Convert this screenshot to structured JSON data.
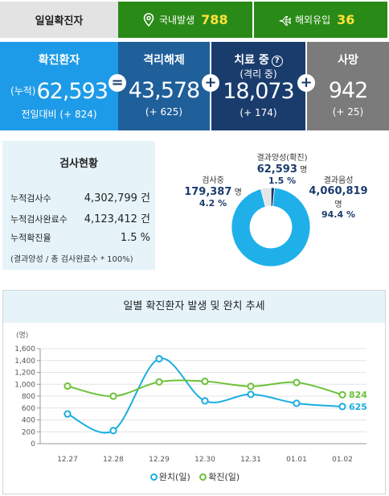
{
  "topbar": {
    "label": "일일확진자",
    "domestic": {
      "label": "국내발생",
      "value": "788",
      "icon": "map-pin-icon"
    },
    "overseas": {
      "label": "해외유입",
      "value": "36",
      "icon": "airplane-icon"
    }
  },
  "cards": {
    "confirmed": {
      "title": "확진환자",
      "prefix": "(누적)",
      "value": "62,593",
      "delta": "전일대비 (+ 824)",
      "color": "#1e9be8"
    },
    "released": {
      "title": "격리해제",
      "value": "43,578",
      "delta": "(+ 625)",
      "color": "#1f5f9a"
    },
    "treating": {
      "title": "치료 중",
      "help": "?",
      "sub": "(격리 중)",
      "value": "18,073",
      "delta": "(+ 174)",
      "color": "#1a3c6d"
    },
    "deaths": {
      "title": "사망",
      "value": "942",
      "delta": "(+ 25)",
      "color": "#7b7b7b"
    },
    "operators": [
      "=",
      "+",
      "+"
    ]
  },
  "tests": {
    "title": "검사현황",
    "rows": [
      {
        "label": "누적검사수",
        "value": "4,302,799 건"
      },
      {
        "label": "누적검사완료수",
        "value": "4,123,412 건"
      },
      {
        "label": "누적확진율",
        "value": "1.5 %"
      }
    ],
    "note": "(결과양성 / 총 검사완료수 * 100%)"
  },
  "pie": {
    "positive": {
      "label": "결과양성(확진)",
      "value": "62,593",
      "unit": "명",
      "pct": "1.5 %",
      "frac": 0.015,
      "color": "#1a3c6d"
    },
    "testing": {
      "label": "검사중",
      "value": "179,387",
      "unit": "명",
      "pct": "4.2 %",
      "frac": 0.042,
      "color": "#e6e6e6"
    },
    "negative": {
      "label": "결과음성",
      "value": "4,060,819",
      "unit": "명",
      "pct": "94.4 %",
      "frac": 0.944,
      "color": "#1fb0ea"
    }
  },
  "trend": {
    "title": "일별 확진환자 발생 및 완치 추세",
    "unit": "(명)",
    "legend_released": "완치(일)",
    "legend_confirmed": "확진(일)",
    "last_released": "625",
    "last_confirmed": "824"
  },
  "chart_data": {
    "type": "line",
    "title": "일별 확진환자 발생 및 완치 추세",
    "ylabel": "(명)",
    "ylim": [
      0,
      1600
    ],
    "yticks": [
      0,
      200,
      400,
      600,
      800,
      1000,
      1200,
      1400,
      1600
    ],
    "yticklabels": [
      "0",
      "200",
      "400",
      "600",
      "800",
      "1,000",
      "1,200",
      "1,400",
      "1,600"
    ],
    "categories": [
      "12.27",
      "12.28",
      "12.29",
      "12.30",
      "12.31",
      "01.01",
      "01.02"
    ],
    "series": [
      {
        "name": "완치(일)",
        "color": "#1aaedf",
        "values": [
          500,
          220,
          1430,
          720,
          830,
          680,
          625
        ]
      },
      {
        "name": "확진(일)",
        "color": "#6cc23a",
        "values": [
          970,
          800,
          1040,
          1050,
          965,
          1030,
          824
        ]
      }
    ],
    "grid": true,
    "legend": "bottom"
  }
}
